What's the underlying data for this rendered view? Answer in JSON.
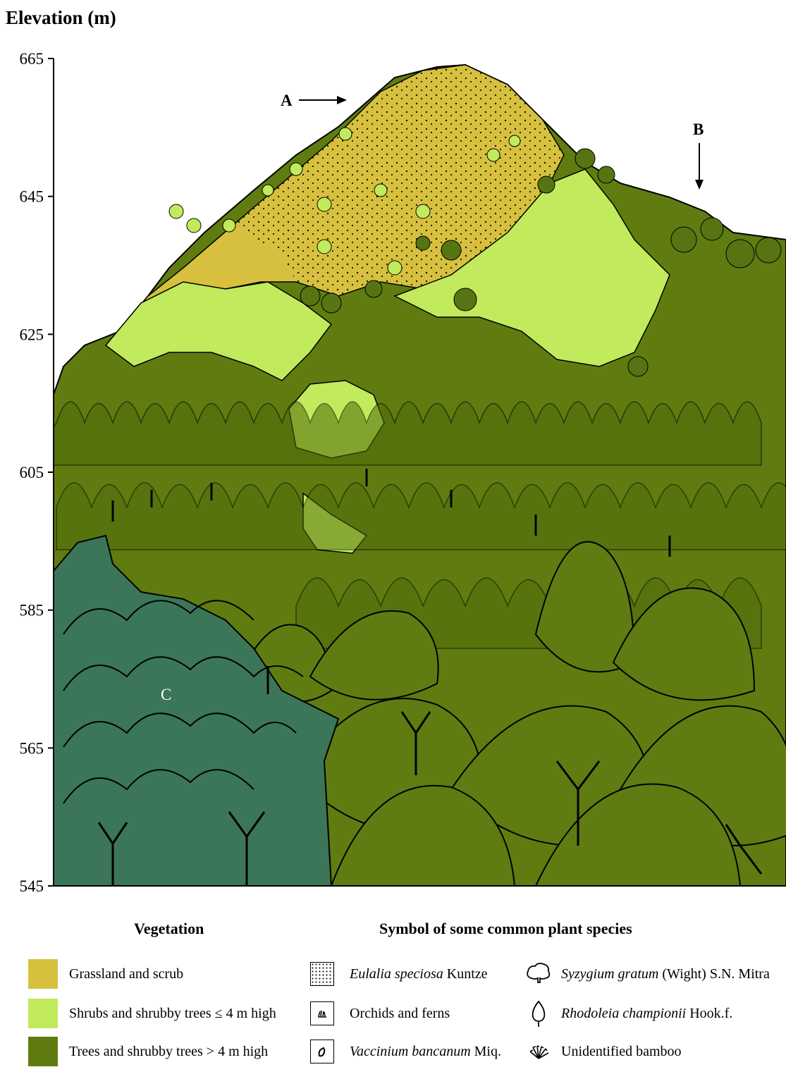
{
  "y_axis": {
    "title": "Elevation (m)",
    "ticks": [
      665,
      645,
      625,
      605,
      585,
      565,
      545
    ]
  },
  "markers": {
    "a": "A",
    "b": "B",
    "c": "C"
  },
  "legend": {
    "vegetation_heading": "Vegetation",
    "vegetation": [
      {
        "label": "Grassland and scrub",
        "color": "#d7c03e"
      },
      {
        "label": "Shrubs and shrubby trees ≤ 4 m high",
        "color": "#c1ea5c"
      },
      {
        "label": "Trees and shrubby trees > 4 m high",
        "color": "#607c10"
      }
    ],
    "symbols_heading": "Symbol of some common plant species",
    "symbols": [
      {
        "icon": "stipple-icon",
        "name": "Eulalia speciosa",
        "author": " Kuntze"
      },
      {
        "icon": "orchid-fern-icon",
        "name": "",
        "author": "Orchids and ferns"
      },
      {
        "icon": "vaccinium-leaf-icon",
        "name": "Vaccinium bancanum",
        "author": " Miq."
      },
      {
        "icon": "cloud-tree-icon",
        "name": "Syzygium gratum",
        "author": " (Wight) S.N. Mitra"
      },
      {
        "icon": "teardrop-tree-icon",
        "name": "Rhodoleia championii",
        "author": " Hook.f."
      },
      {
        "icon": "bamboo-icon",
        "name": "",
        "author": "Unidentified bamboo"
      }
    ]
  },
  "colors": {
    "grassland": "#d7c03e",
    "shrubs": "#c1ea5c",
    "trees": "#607c10",
    "teal_trees": "#3b7659",
    "dark_trees": "#4d6b0c",
    "outline": "#000000"
  }
}
